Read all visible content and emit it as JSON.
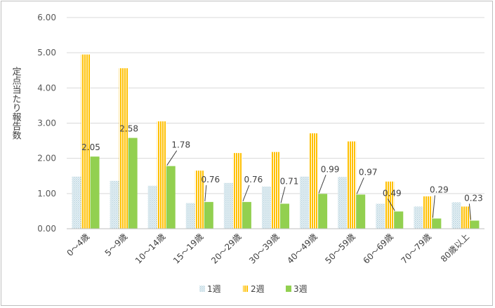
{
  "chart_data": {
    "type": "bar",
    "title": "",
    "ylabel": "定点当たり報告数",
    "xlabel": "",
    "ylim": [
      0,
      6
    ],
    "yticks": [
      "0.00",
      "1.00",
      "2.00",
      "3.00",
      "4.00",
      "5.00",
      "6.00"
    ],
    "categories": [
      "0～4歳",
      "5～9歳",
      "10～14歳",
      "15～19歳",
      "20～29歳",
      "30～39歳",
      "40～49歳",
      "50～59歳",
      "60～69歳",
      "70～79歳",
      "80歳以上"
    ],
    "series": [
      {
        "name": "1週",
        "values": [
          1.48,
          1.36,
          1.22,
          0.73,
          1.3,
          1.2,
          1.48,
          1.47,
          0.71,
          0.63,
          0.75
        ],
        "color": "#dce9ee",
        "pattern": "dots"
      },
      {
        "name": "2週",
        "values": [
          4.95,
          4.56,
          3.05,
          1.65,
          2.15,
          2.18,
          2.71,
          2.48,
          1.34,
          0.92,
          0.63
        ],
        "color": "#ffc000",
        "pattern": "vertical-stripes"
      },
      {
        "name": "3週",
        "values": [
          2.05,
          2.58,
          1.78,
          0.76,
          0.76,
          0.71,
          0.99,
          0.97,
          0.49,
          0.29,
          0.23
        ],
        "color": "#92d050",
        "pattern": "solid",
        "labels": [
          "2.05",
          "2.58",
          "1.78",
          "0.76",
          "0.76",
          "0.71",
          "0.99",
          "0.97",
          "0.49",
          "0.29",
          "0.23"
        ]
      }
    ],
    "grid": true,
    "legend_position": "bottom"
  }
}
